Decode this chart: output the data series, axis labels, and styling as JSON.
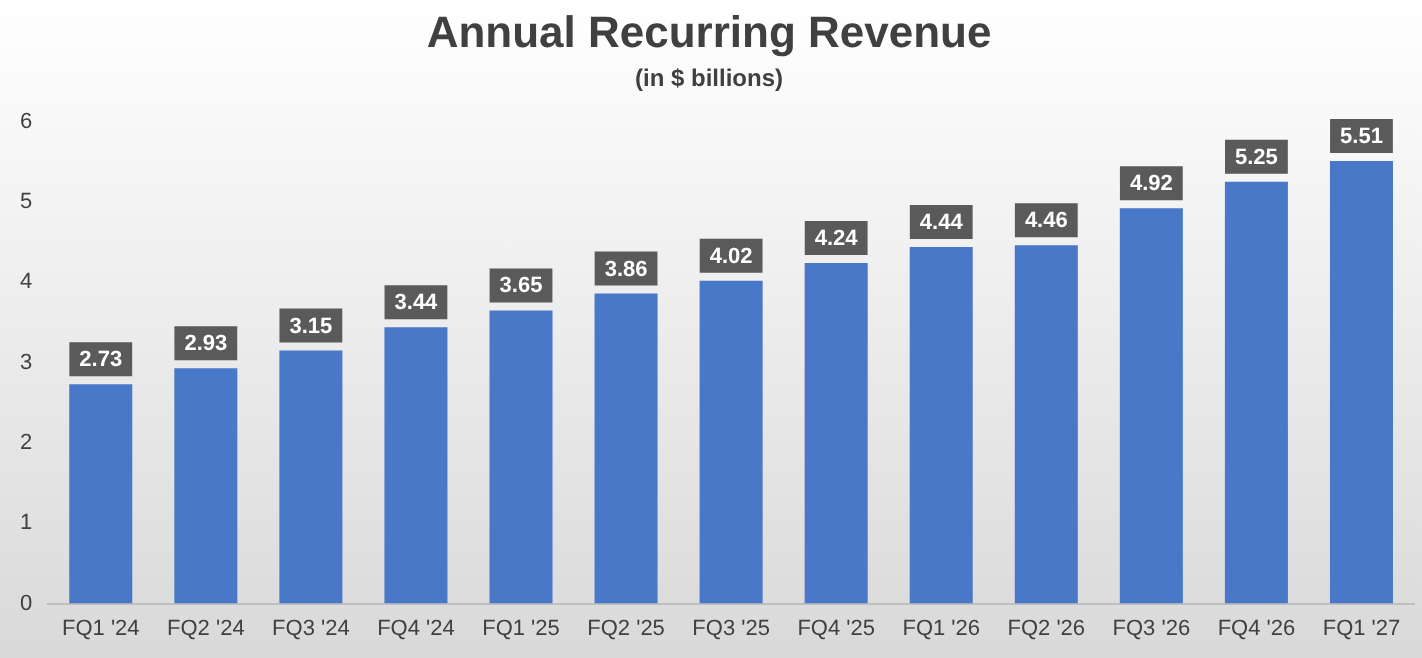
{
  "chart_data": {
    "type": "bar",
    "title": "Annual Recurring Revenue",
    "subtitle": "(in $ billions)",
    "categories": [
      "FQ1 '24",
      "FQ2 '24",
      "FQ3 '24",
      "FQ4 '24",
      "FQ1 '25",
      "FQ2 '25",
      "FQ3 '25",
      "FQ4 '25",
      "FQ1 '26",
      "FQ2 '26",
      "FQ3 '26",
      "FQ4 '26",
      "FQ1 '27"
    ],
    "values": [
      2.73,
      2.93,
      3.15,
      3.44,
      3.65,
      3.86,
      4.02,
      4.24,
      4.44,
      4.46,
      4.92,
      5.25,
      5.51
    ],
    "color": "#4a78c9",
    "ylim": [
      0,
      6
    ],
    "yticks": [
      0,
      1,
      2,
      3,
      4,
      5,
      6
    ],
    "grid": false,
    "legend": false,
    "data_labels": true
  }
}
